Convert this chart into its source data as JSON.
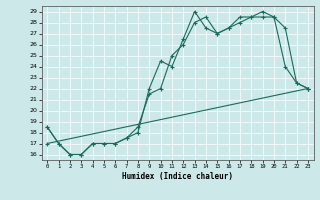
{
  "xlabel": "Humidex (Indice chaleur)",
  "bg_color": "#cce8e8",
  "line_color": "#1a6b5a",
  "xlim": [
    -0.5,
    23.5
  ],
  "ylim": [
    15.5,
    29.5
  ],
  "yticks": [
    16,
    17,
    18,
    19,
    20,
    21,
    22,
    23,
    24,
    25,
    26,
    27,
    28,
    29
  ],
  "xticks": [
    0,
    1,
    2,
    3,
    4,
    5,
    6,
    7,
    8,
    9,
    10,
    11,
    12,
    13,
    14,
    15,
    16,
    17,
    18,
    19,
    20,
    21,
    22,
    23
  ],
  "line1_x": [
    0,
    1,
    2,
    3,
    4,
    5,
    6,
    7,
    8,
    9,
    10,
    11,
    12,
    13,
    14,
    15,
    16,
    17,
    18,
    19,
    20,
    21,
    22,
    23
  ],
  "line1_y": [
    18.5,
    17.0,
    16.0,
    16.0,
    17.0,
    17.0,
    17.0,
    17.5,
    18.0,
    22.0,
    24.5,
    24.0,
    26.5,
    29.0,
    27.5,
    27.0,
    27.5,
    28.5,
    28.5,
    29.0,
    28.5,
    27.5,
    22.5,
    22.0
  ],
  "line2_x": [
    0,
    1,
    2,
    3,
    4,
    5,
    6,
    7,
    8,
    9,
    10,
    11,
    12,
    13,
    14,
    15,
    16,
    17,
    18,
    19,
    20,
    21,
    22,
    23
  ],
  "line2_y": [
    18.5,
    17.0,
    16.0,
    16.0,
    17.0,
    17.0,
    17.0,
    17.5,
    18.5,
    21.5,
    22.0,
    25.0,
    26.0,
    28.0,
    28.5,
    27.0,
    27.5,
    28.0,
    28.5,
    28.5,
    28.5,
    24.0,
    22.5,
    22.0
  ],
  "line3_x": [
    0,
    23
  ],
  "line3_y": [
    17.0,
    22.0
  ]
}
